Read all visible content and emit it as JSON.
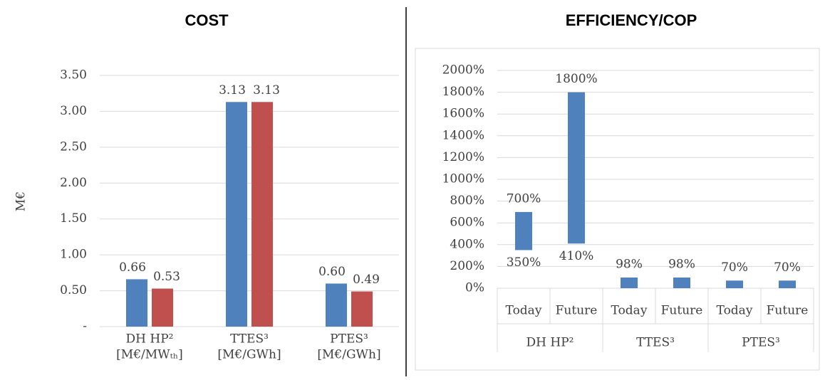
{
  "chart_data": [
    {
      "type": "bar",
      "title": "COST",
      "y_label": "M€",
      "categories": [
        [
          "DH HP²",
          "[M€/MWₜₕ]"
        ],
        [
          "TTES³",
          "[M€/GWh]"
        ],
        [
          "PTES³",
          "[M€/GWh]"
        ]
      ],
      "series": [
        {
          "color": "#4f81bd",
          "values": [
            0.66,
            3.13,
            0.6
          ],
          "value_labels": [
            "0.66",
            "3.13",
            "0.60"
          ]
        },
        {
          "color": "#c0504d",
          "values": [
            0.53,
            3.13,
            0.49
          ],
          "value_labels": [
            "0.53",
            "3.13",
            "0.49"
          ]
        }
      ],
      "ylim": [
        0,
        3.5
      ],
      "yticks": [
        {
          "value": 0,
          "label": "-"
        },
        {
          "value": 0.5,
          "label": "0.50"
        },
        {
          "value": 1,
          "label": "1.00"
        },
        {
          "value": 1.5,
          "label": "1.50"
        },
        {
          "value": 2,
          "label": "2.00"
        },
        {
          "value": 2.5,
          "label": "2.50"
        },
        {
          "value": 3,
          "label": "3.00"
        },
        {
          "value": 3.5,
          "label": "3.50"
        }
      ],
      "grid": true
    },
    {
      "type": "range-bar",
      "title": "EFFICIENCY/COP",
      "categories": [
        "Today",
        "Future",
        "Today",
        "Future",
        "Today",
        "Future"
      ],
      "groups": [
        "DH HP²",
        "TTES³",
        "PTES³"
      ],
      "color": "#4f81bd",
      "base": [
        350,
        410,
        0,
        0,
        0,
        0
      ],
      "base_labels": [
        "350%",
        "410%",
        null,
        null,
        null,
        null
      ],
      "values": [
        700,
        1800,
        98,
        98,
        70,
        70
      ],
      "value_labels": [
        "700%",
        "1800%",
        "98%",
        "98%",
        "70%",
        "70%"
      ],
      "ylim": [
        0,
        2000
      ],
      "yticks": [
        {
          "value": 0,
          "label": "0%"
        },
        {
          "value": 200,
          "label": "200%"
        },
        {
          "value": 400,
          "label": "400%"
        },
        {
          "value": 600,
          "label": "600%"
        },
        {
          "value": 800,
          "label": "800%"
        },
        {
          "value": 1000,
          "label": "1000%"
        },
        {
          "value": 1200,
          "label": "1200%"
        },
        {
          "value": 1400,
          "label": "1400%"
        },
        {
          "value": 1600,
          "label": "1600%"
        },
        {
          "value": 1800,
          "label": "1800%"
        },
        {
          "value": 2000,
          "label": "2000%"
        }
      ],
      "grid": true
    }
  ]
}
